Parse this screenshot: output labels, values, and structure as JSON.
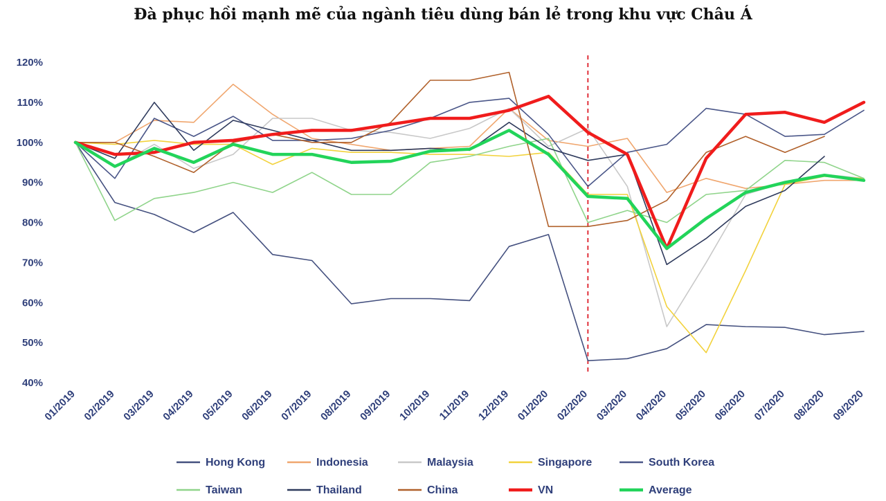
{
  "chart_data": {
    "type": "line",
    "title": "Đà phục hồi mạnh mẽ của ngành tiêu dùng bán lẻ trong khu vực Châu Á",
    "xlabel": "",
    "ylabel": "",
    "ylim": [
      40,
      120
    ],
    "ytick_labels": [
      "40%",
      "50%",
      "60%",
      "70%",
      "80%",
      "90%",
      "100%",
      "110%",
      "120%"
    ],
    "categories": [
      "01/2019",
      "02/2019",
      "03/2019",
      "04/2019",
      "05/2019",
      "06/2019",
      "07/2019",
      "08/2019",
      "09/2019",
      "10/2019",
      "11/2019",
      "12/2019",
      "01/2020",
      "02/2020",
      "03/2020",
      "04/2020",
      "05/2020",
      "06/2020",
      "07/2020",
      "08/2020",
      "09/2020"
    ],
    "reference_line": {
      "category": "02/2020",
      "style": "dashed",
      "color": "#e0303a"
    },
    "grid": false,
    "legend_position": "bottom",
    "series": [
      {
        "name": "Hong Kong",
        "color": "#44507f",
        "width": 1.6,
        "values": [
          100,
          85,
          82,
          77.5,
          82.5,
          72,
          70.5,
          59.7,
          61,
          61,
          60.5,
          74,
          77,
          45.5,
          46,
          48.5,
          54.5,
          54,
          53.8,
          52,
          52.8
        ]
      },
      {
        "name": "Indonesia",
        "color": "#f0a66e",
        "width": 1.6,
        "values": [
          100,
          100,
          105.5,
          105,
          114.5,
          107,
          101,
          99.5,
          98,
          98.5,
          99,
          108.5,
          100.5,
          99,
          101,
          87.5,
          91,
          88.5,
          89.5,
          90.5,
          90.5
        ]
      },
      {
        "name": "Malaysia",
        "color": "#c8c8c8",
        "width": 1.6,
        "values": [
          100,
          94,
          99.5,
          93.5,
          97,
          106,
          106,
          103,
          102.5,
          101,
          103.5,
          108.5,
          99,
          103.5,
          89,
          54,
          70,
          87,
          90,
          92,
          91
        ]
      },
      {
        "name": "Singapore",
        "color": "#f2d23c",
        "width": 1.6,
        "values": [
          100,
          99.5,
          100.5,
          99.5,
          99.5,
          94.5,
          98.5,
          97.5,
          97.5,
          97,
          97,
          96.5,
          97.5,
          87,
          87,
          59,
          47.5,
          68,
          89.5,
          91.5,
          91
        ]
      },
      {
        "name": "South Korea",
        "color": "#4a5688",
        "width": 1.6,
        "values": [
          100,
          91,
          106,
          101.5,
          106.5,
          100.5,
          100.5,
          101,
          103,
          106,
          110,
          111,
          102,
          89,
          97.5,
          99.5,
          108.5,
          107,
          101.5,
          102,
          108
        ]
      },
      {
        "name": "Taiwan",
        "color": "#8fd48a",
        "width": 1.6,
        "values": [
          100,
          80.5,
          86,
          87.5,
          90,
          87.5,
          92.5,
          87,
          87,
          95,
          96.5,
          99,
          101,
          80,
          83,
          80,
          87,
          88,
          95.5,
          95,
          91
        ]
      },
      {
        "name": "Thailand",
        "color": "#2e3a5c",
        "width": 1.6,
        "values": [
          100,
          96,
          110,
          98,
          105.5,
          103,
          100.5,
          98,
          98,
          98.5,
          98,
          105,
          98.5,
          95.5,
          97,
          69.5,
          76,
          84,
          88,
          96.5,
          null
        ]
      },
      {
        "name": "China",
        "color": "#b0602a",
        "width": 1.6,
        "values": [
          100,
          100,
          96.5,
          92.5,
          100,
          102,
          100,
          100,
          105,
          115.5,
          115.5,
          117.5,
          79,
          79,
          80.5,
          85.5,
          97.5,
          101.5,
          97.5,
          101.5,
          null
        ]
      },
      {
        "name": "VN",
        "color": "#f01c1c",
        "width": 4.5,
        "values": [
          100,
          97,
          97.5,
          100,
          100.5,
          102,
          103,
          103,
          104.5,
          106,
          106,
          108,
          111.5,
          102.5,
          97,
          73.5,
          96,
          107,
          107.5,
          105,
          110
        ]
      },
      {
        "name": "Average",
        "color": "#22d45a",
        "width": 4.5,
        "values": [
          100,
          94,
          98.5,
          95,
          99.5,
          97,
          97,
          95,
          95.3,
          97.8,
          98.3,
          103,
          97,
          86.5,
          86,
          73.5,
          81,
          87.5,
          90,
          91.8,
          90.5
        ]
      }
    ]
  }
}
